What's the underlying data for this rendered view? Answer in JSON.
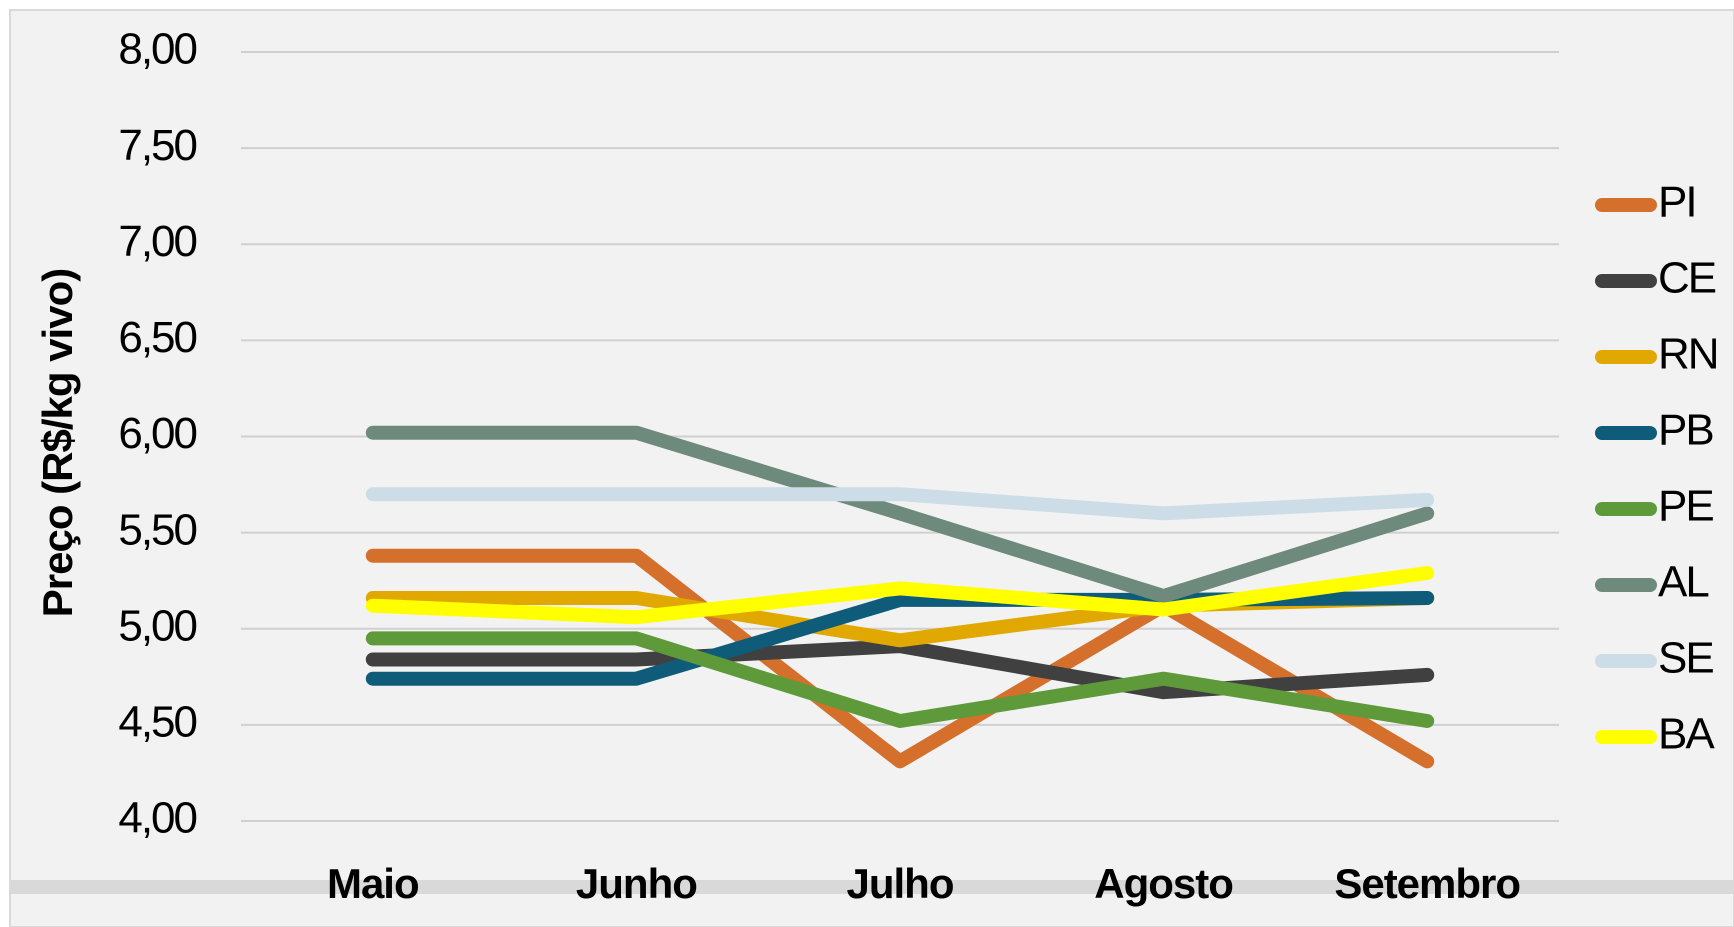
{
  "chart_data": {
    "type": "line",
    "y_label": "Preço (R$/kg vivo)",
    "categories": [
      "Maio",
      "Junho",
      "Julho",
      "Agosto",
      "Setembro"
    ],
    "series": [
      {
        "name": "PI",
        "color": "#d4702c",
        "values": [
          5.38,
          5.38,
          4.31,
          5.12,
          4.31
        ]
      },
      {
        "name": "CE",
        "color": "#404040",
        "values": [
          4.84,
          4.84,
          4.91,
          4.67,
          4.76
        ]
      },
      {
        "name": "RN",
        "color": "#e0a800",
        "values": [
          5.16,
          5.16,
          4.94,
          5.12,
          5.16
        ]
      },
      {
        "name": "PB",
        "color": "#0e5c7a",
        "values": [
          4.74,
          4.74,
          5.15,
          5.15,
          5.16
        ]
      },
      {
        "name": "PE",
        "color": "#5e9a3a",
        "values": [
          4.95,
          4.95,
          4.52,
          4.74,
          4.52
        ]
      },
      {
        "name": "AL",
        "color": "#6e8a7c",
        "values": [
          6.02,
          6.02,
          5.6,
          5.17,
          5.6
        ]
      },
      {
        "name": "SE",
        "color": "#cddde8",
        "values": [
          5.7,
          5.7,
          5.7,
          5.6,
          5.67
        ]
      },
      {
        "name": "BA",
        "color": "#ffff00",
        "values": [
          5.12,
          5.06,
          5.21,
          5.1,
          5.29
        ]
      }
    ],
    "ylim": [
      4,
      8
    ],
    "yticks": [
      {
        "value": 4,
        "label": "4,00"
      },
      {
        "value": 4.5,
        "label": "4,50"
      },
      {
        "value": 5,
        "label": "5,00"
      },
      {
        "value": 5.5,
        "label": "5,50"
      },
      {
        "value": 6,
        "label": "6,00"
      },
      {
        "value": 6.5,
        "label": "6,50"
      },
      {
        "value": 7,
        "label": "7,00"
      },
      {
        "value": 7.5,
        "label": "7,50"
      },
      {
        "value": 8,
        "label": "8,00"
      }
    ],
    "grid": true
  }
}
